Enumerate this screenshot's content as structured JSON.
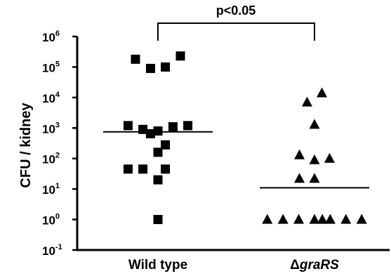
{
  "chart_data": {
    "type": "scatter",
    "ylabel": "CFU / kidney",
    "yscale": "log",
    "ylim": [
      0.1,
      1000000
    ],
    "yticks": [
      {
        "value": 0.1,
        "base": "10",
        "exp": "-1"
      },
      {
        "value": 1,
        "base": "10",
        "exp": "0"
      },
      {
        "value": 10,
        "base": "10",
        "exp": "1"
      },
      {
        "value": 100,
        "base": "10",
        "exp": "2"
      },
      {
        "value": 1000,
        "base": "10",
        "exp": "3"
      },
      {
        "value": 10000,
        "base": "10",
        "exp": "4"
      },
      {
        "value": 100000,
        "base": "10",
        "exp": "5"
      },
      {
        "value": 1000000,
        "base": "10",
        "exp": "6"
      }
    ],
    "categories": [
      {
        "label": "Wild type",
        "prefix": "",
        "name": "Wild type",
        "marker": "square"
      },
      {
        "label": "ΔgraRS",
        "prefix": "Δ",
        "name": "graRS",
        "marker": "triangle"
      }
    ],
    "series": [
      {
        "category": "Wild type",
        "marker": "square",
        "median": 750,
        "points": [
          {
            "offset": -1,
            "y": 180000
          },
          {
            "offset": -0.33,
            "y": 90000
          },
          {
            "offset": 0.33,
            "y": 100000
          },
          {
            "offset": 1,
            "y": 230000
          },
          {
            "offset": -1.33,
            "y": 1200
          },
          {
            "offset": -0.67,
            "y": 900
          },
          {
            "offset": 0,
            "y": 800
          },
          {
            "offset": 0.67,
            "y": 1100
          },
          {
            "offset": 1.33,
            "y": 1200
          },
          {
            "offset": -0.33,
            "y": 650
          },
          {
            "offset": 0.33,
            "y": 280
          },
          {
            "offset": 0,
            "y": 160
          },
          {
            "offset": -1.33,
            "y": 45
          },
          {
            "offset": -0.67,
            "y": 45
          },
          {
            "offset": 0.33,
            "y": 45
          },
          {
            "offset": 0,
            "y": 20
          },
          {
            "offset": 0,
            "y": 1
          }
        ]
      },
      {
        "category": "ΔgraRS",
        "marker": "triangle",
        "median": 11,
        "points": [
          {
            "offset": 0.33,
            "y": 14000
          },
          {
            "offset": -0.33,
            "y": 7000
          },
          {
            "offset": 0,
            "y": 1300
          },
          {
            "offset": -0.67,
            "y": 130
          },
          {
            "offset": 0,
            "y": 90
          },
          {
            "offset": 0.67,
            "y": 100
          },
          {
            "offset": -0.67,
            "y": 22
          },
          {
            "offset": 0,
            "y": 22
          },
          {
            "offset": -2.1,
            "y": 1
          },
          {
            "offset": -1.4,
            "y": 1
          },
          {
            "offset": -0.7,
            "y": 1
          },
          {
            "offset": 0,
            "y": 1
          },
          {
            "offset": 0.35,
            "y": 1
          },
          {
            "offset": 0.7,
            "y": 1
          },
          {
            "offset": 1.4,
            "y": 1
          },
          {
            "offset": 2.1,
            "y": 1
          }
        ]
      }
    ],
    "annotation": {
      "text": "p<0.05",
      "from": "Wild type",
      "to": "ΔgraRS"
    }
  }
}
